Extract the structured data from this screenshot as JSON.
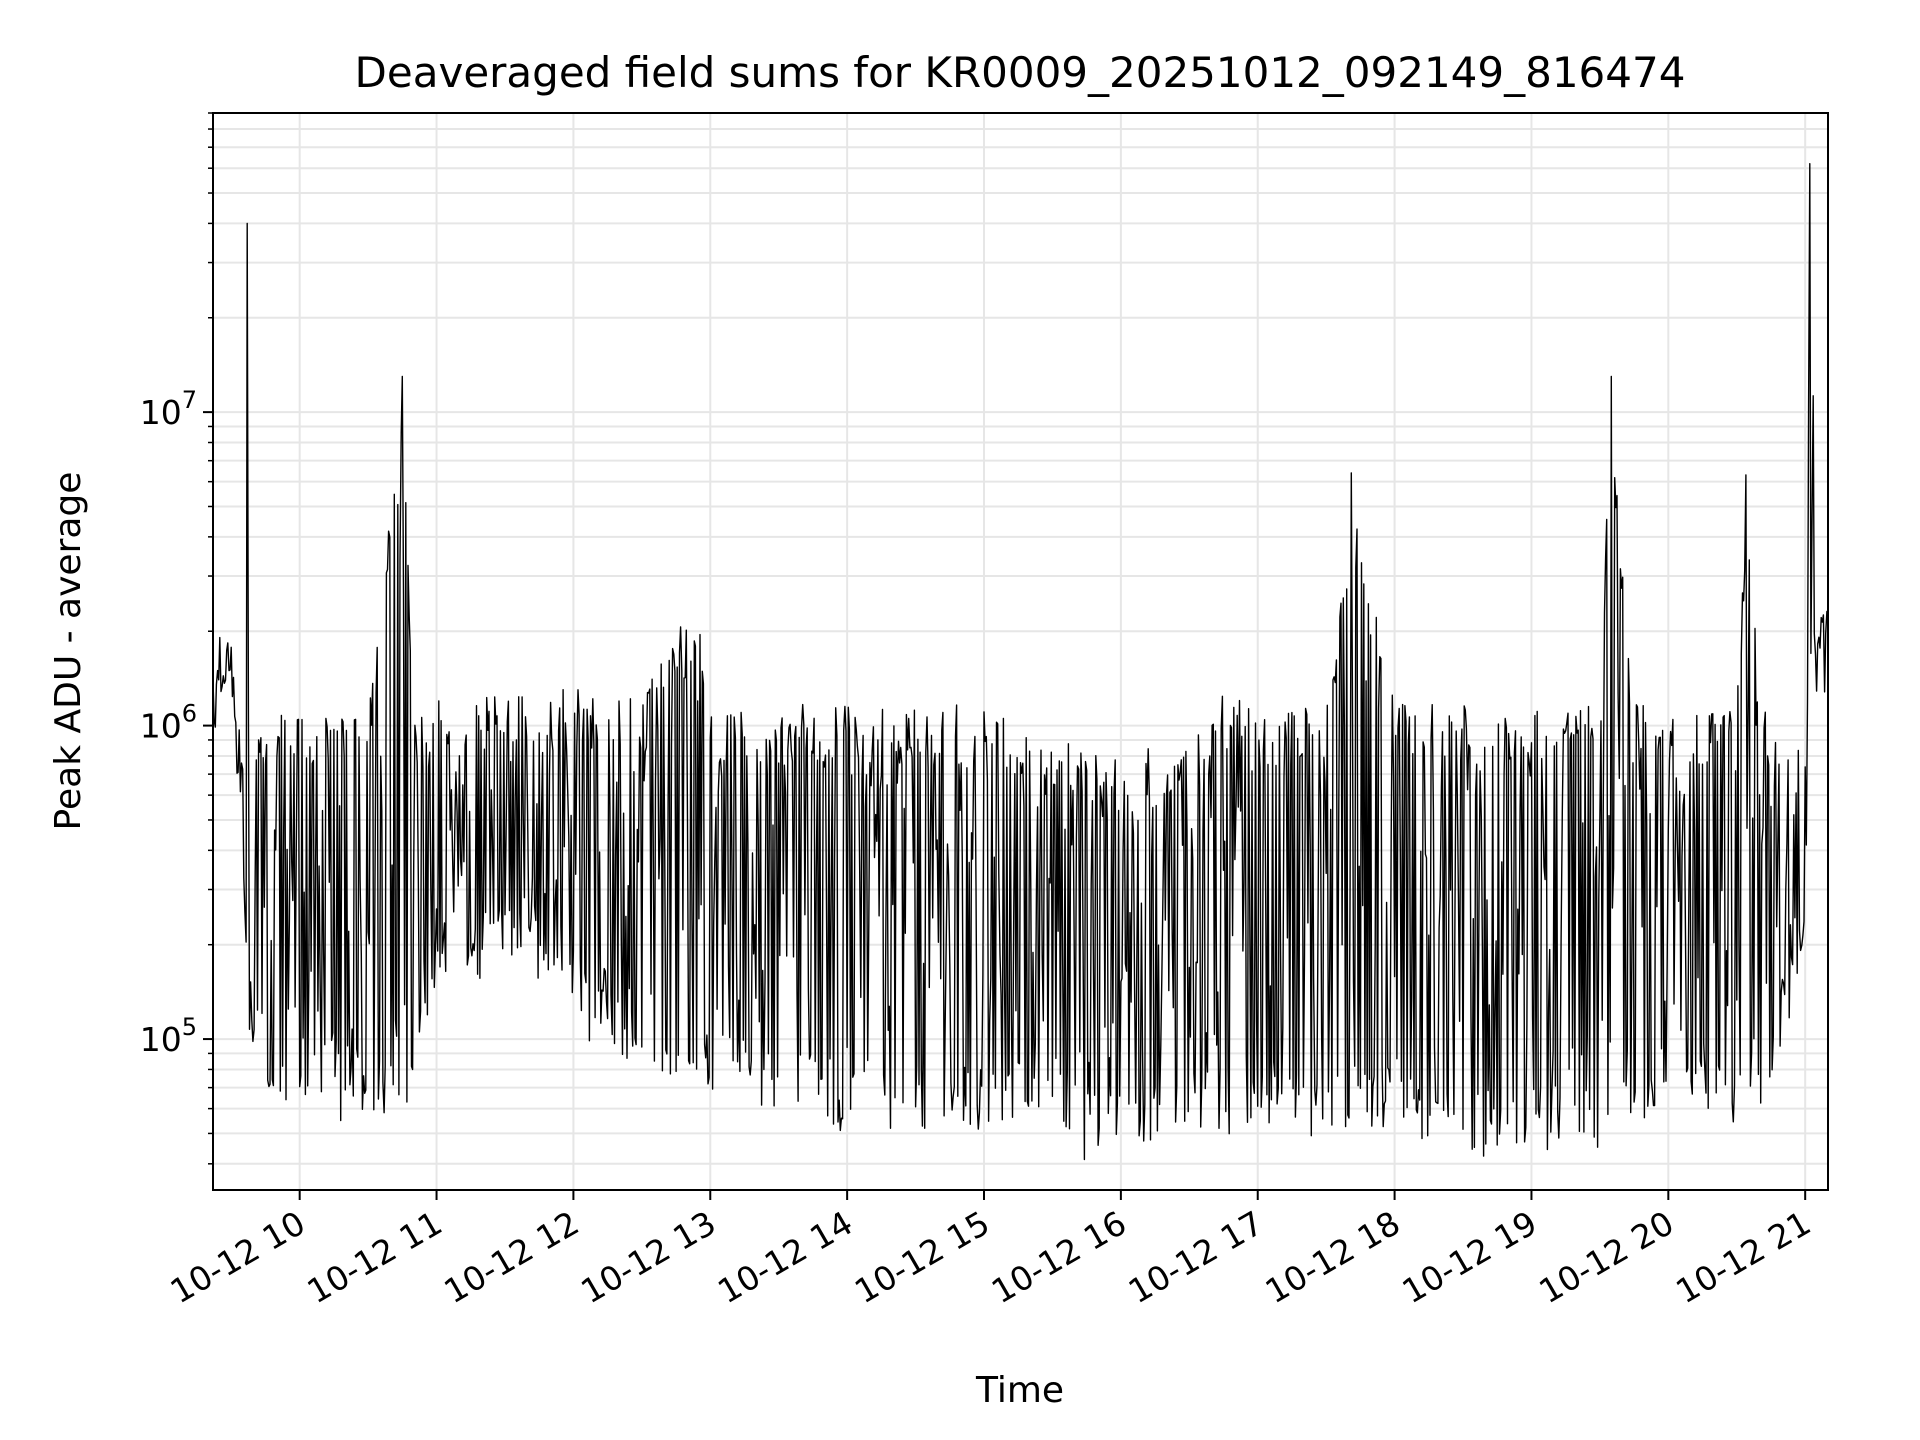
{
  "chart_data": {
    "type": "line",
    "title": "Deaveraged field sums for KR0009_20251012_092149_816474",
    "xlabel": "Time",
    "ylabel": "Peak ADU - average",
    "yscale": "log",
    "xlim": [
      "2025-10-12 09:22",
      "2025-10-12 21:10"
    ],
    "ylim": [
      33000,
      90000000
    ],
    "x_ticks": [
      "10-12 10",
      "10-12 11",
      "10-12 12",
      "10-12 13",
      "10-12 14",
      "10-12 15",
      "10-12 16",
      "10-12 17",
      "10-12 18",
      "10-12 19",
      "10-12 20",
      "10-12 21"
    ],
    "y_ticks": [
      {
        "base": "10",
        "exp": "5",
        "value": 100000
      },
      {
        "base": "10",
        "exp": "6",
        "value": 1000000
      },
      {
        "base": "10",
        "exp": "7",
        "value": 10000000
      }
    ],
    "grid": true,
    "line_color": "#000000",
    "series": [
      {
        "x": [
          "2025-10-12 09:22",
          "2025-10-12 09:25",
          "2025-10-12 09:30",
          "2025-10-12 09:35",
          "2025-10-12 09:37",
          "2025-10-12 09:40",
          "2025-10-12 09:45",
          "2025-10-12 09:48",
          "2025-10-12 09:50",
          "2025-10-12 10:00",
          "2025-10-12 10:15",
          "2025-10-12 10:30",
          "2025-10-12 10:45",
          "2025-10-12 10:50",
          "2025-10-12 11:00",
          "2025-10-12 11:30",
          "2025-10-12 12:00",
          "2025-10-12 12:30",
          "2025-10-12 12:55",
          "2025-10-12 13:00",
          "2025-10-12 13:30",
          "2025-10-12 14:00",
          "2025-10-12 14:30",
          "2025-10-12 15:00",
          "2025-10-12 15:30",
          "2025-10-12 15:45",
          "2025-10-12 16:00",
          "2025-10-12 16:30",
          "2025-10-12 16:45",
          "2025-10-12 17:00",
          "2025-10-12 17:30",
          "2025-10-12 17:41",
          "2025-10-12 18:00",
          "2025-10-12 18:30",
          "2025-10-12 19:00",
          "2025-10-12 19:30",
          "2025-10-12 19:35",
          "2025-10-12 19:45",
          "2025-10-12 20:00",
          "2025-10-12 20:30",
          "2025-10-12 20:34",
          "2025-10-12 20:45",
          "2025-10-12 21:00",
          "2025-10-12 21:02",
          "2025-10-12 21:05",
          "2025-10-12 21:10"
        ],
        "high": [
          1900000,
          2300000,
          2400000,
          900000,
          40000000,
          1200000,
          1100000,
          1200000,
          1300000,
          1300000,
          1200000,
          1250000,
          13000000,
          1300000,
          1350000,
          1400000,
          1500000,
          1400000,
          2900000,
          1300000,
          1350000,
          1350000,
          1300000,
          1300000,
          1050000,
          950000,
          900000,
          1000000,
          1400000,
          1300000,
          1300000,
          6400000,
          1350000,
          1300000,
          1300000,
          1300000,
          13000000,
          1300000,
          1300000,
          1300000,
          6300000,
          1000000,
          1100000,
          62000000,
          2600000,
          3300000
        ],
        "low": [
          1000000,
          1200000,
          1400000,
          350000,
          120000,
          90000,
          65000,
          60000,
          70000,
          70000,
          60000,
          65000,
          60000,
          70000,
          150000,
          180000,
          120000,
          80000,
          70000,
          70000,
          65000,
          55000,
          55000,
          55000,
          60000,
          45000,
          50000,
          50000,
          48000,
          50000,
          55000,
          55000,
          55000,
          45000,
          50000,
          45000,
          60000,
          55000,
          55000,
          60000,
          60000,
          75000,
          170000,
          1500000,
          1300000,
          1100000
        ]
      }
    ]
  }
}
